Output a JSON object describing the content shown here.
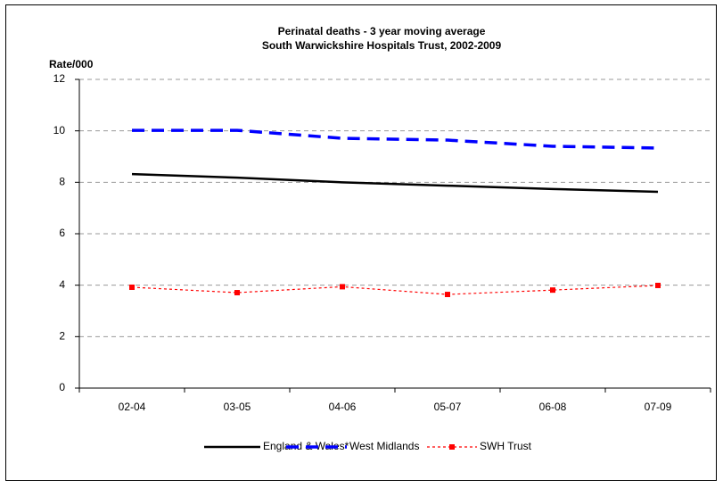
{
  "chart_data": {
    "type": "line",
    "title": "Perinatal deaths - 3 year moving average",
    "subtitle": "South Warwickshire Hospitals Trust, 2002-2009",
    "y_label": "Rate/000",
    "categories": [
      "02-04",
      "03-05",
      "04-06",
      "05-07",
      "06-08",
      "07-09"
    ],
    "series": [
      {
        "name": "England & Wales*",
        "color": "#000000",
        "style": "solid",
        "values": [
          8.32,
          8.18,
          8.0,
          7.87,
          7.74,
          7.63
        ]
      },
      {
        "name": "West Midlands",
        "color": "#0000ff",
        "style": "dashed",
        "values": [
          10.02,
          10.02,
          9.71,
          9.64,
          9.4,
          9.33
        ]
      },
      {
        "name": "SWH Trust",
        "color": "#ff0000",
        "style": "dotted",
        "marker": "square",
        "values": [
          3.92,
          3.71,
          3.94,
          3.64,
          3.81,
          3.99
        ]
      }
    ],
    "ylim": [
      0,
      12
    ],
    "yticks": [
      0,
      2,
      4,
      6,
      8,
      10,
      12
    ],
    "grid": true,
    "legend": "bottom"
  }
}
